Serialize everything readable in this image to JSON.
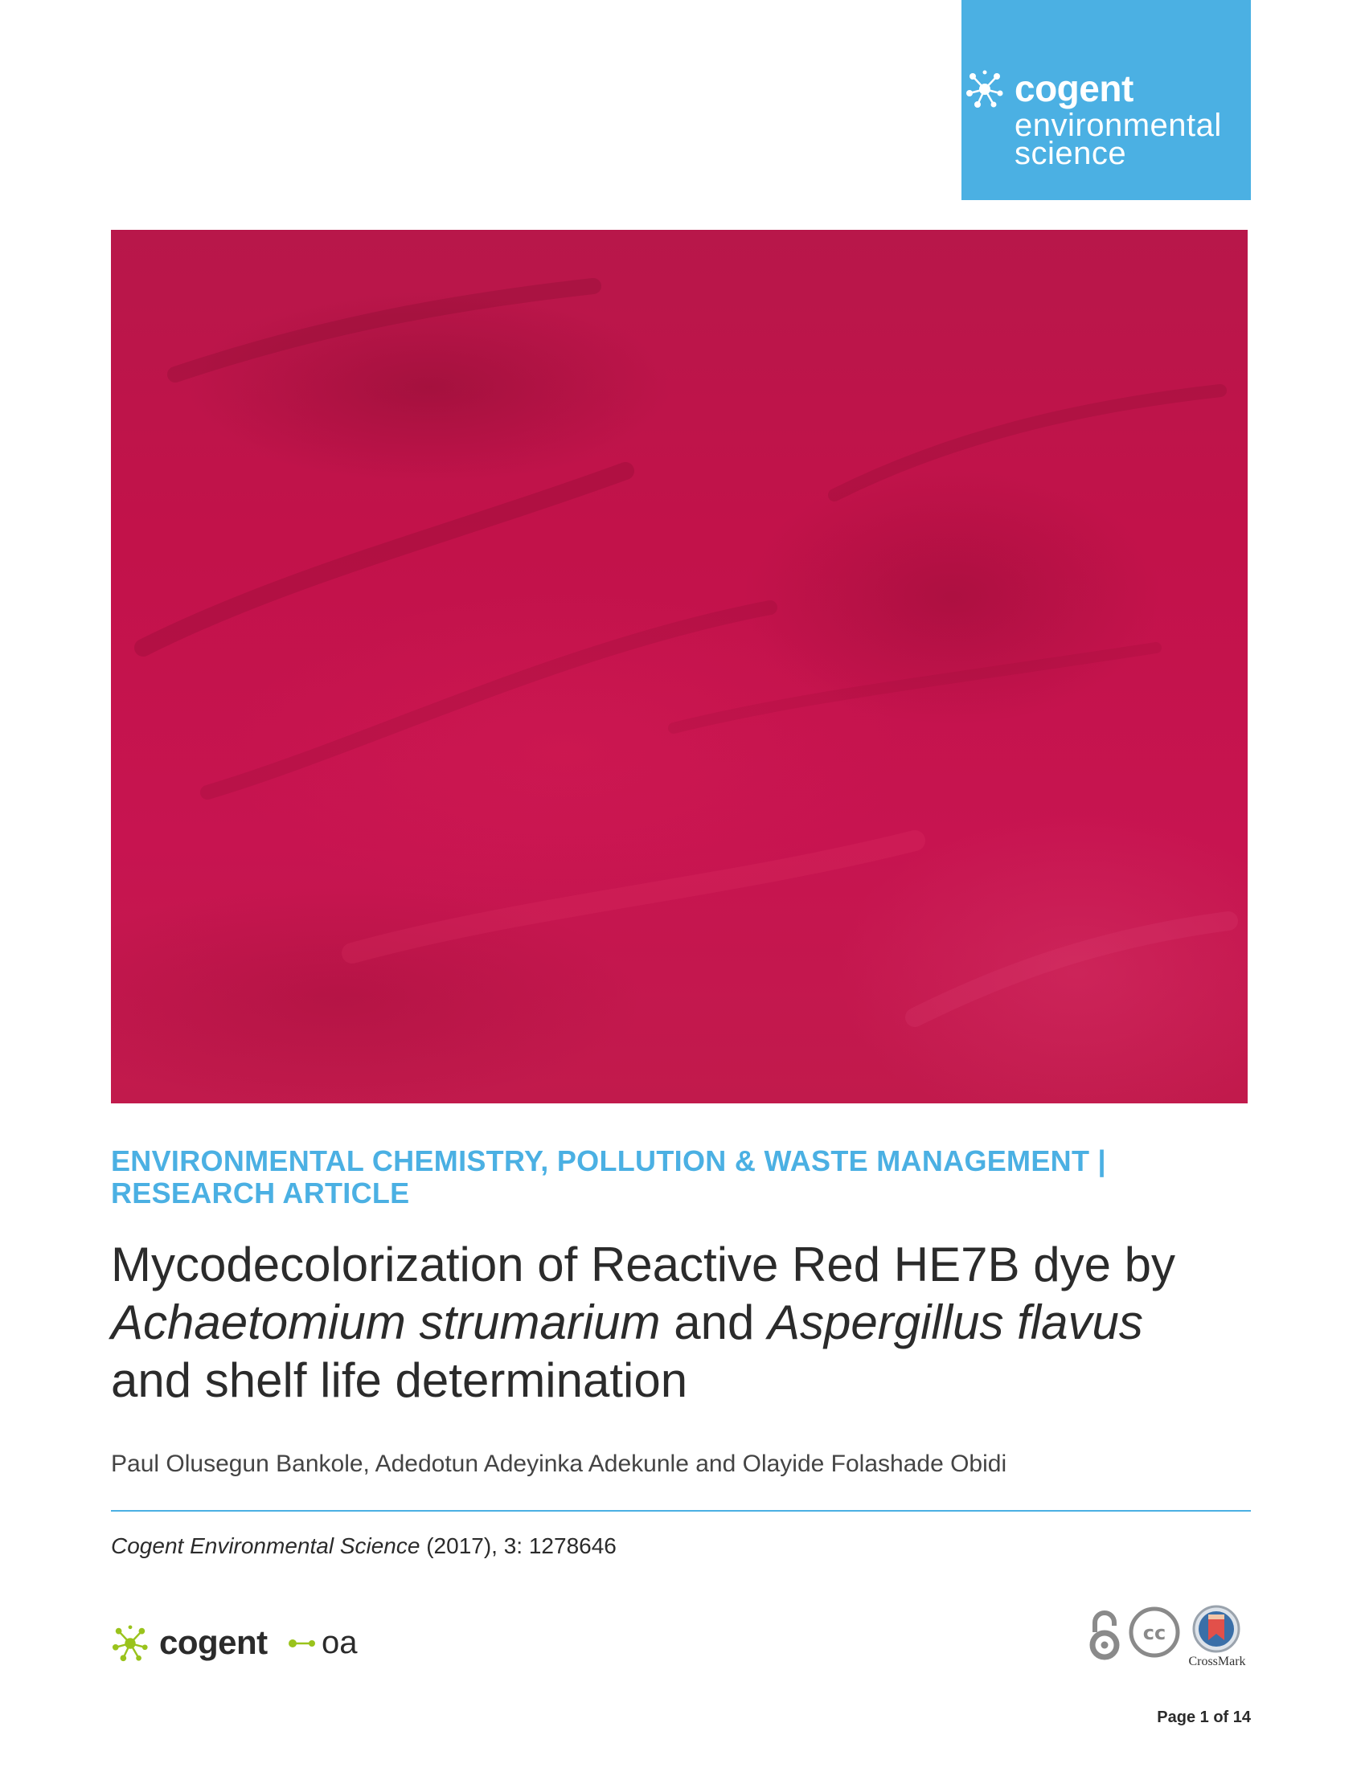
{
  "brand": {
    "name": "cogent",
    "subtitle_line1": "environmental",
    "subtitle_line2": "science",
    "color": "#4bb0e3"
  },
  "cover": {
    "icon": "cover-photo",
    "color": "#c2124a"
  },
  "article": {
    "category_line1": "ENVIRONMENTAL CHEMISTRY, POLLUTION & WASTE MANAGEMENT |",
    "category_line2": "RESEARCH ARTICLE",
    "title_part1": "Mycodecolorization of Reactive Red HE7B dye by",
    "title_species1": "Achaetomium strumarium",
    "title_and": " and ",
    "title_species2": "Aspergillus flavus",
    "title_part2": "and shelf life determination",
    "authors": "Paul Olusegun Bankole, Adedotun Adeyinka Adekunle and Olayide Folashade Obidi",
    "citation_journal": "Cogent Environmental Science",
    "citation_rest": " (2017), 3: 1278646"
  },
  "footer": {
    "logo_name": "cogent",
    "logo_suffix": "oa",
    "logo_icon_color": "#9ac31c",
    "badges": [
      "open-access-icon",
      "creative-commons-icon",
      "crossmark-icon"
    ],
    "crossmark_label": "CrossMark",
    "page_label": "Page 1 of 14"
  }
}
